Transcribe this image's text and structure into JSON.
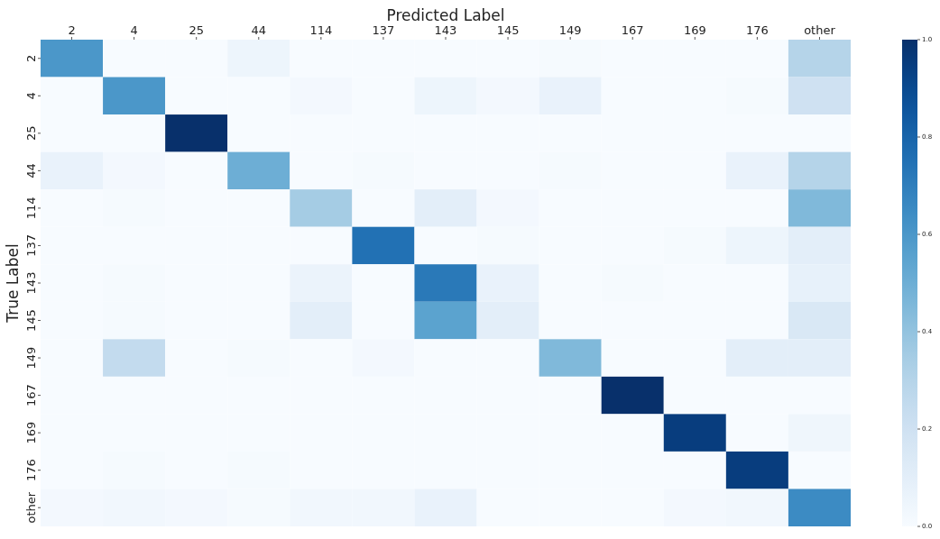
{
  "chart_data": {
    "type": "heatmap",
    "xlabel": "Predicted Label",
    "ylabel": "True Label",
    "categories": [
      "2",
      "4",
      "25",
      "44",
      "114",
      "137",
      "143",
      "145",
      "149",
      "167",
      "169",
      "176",
      "other"
    ],
    "y_categories": [
      "2",
      "4",
      "25",
      "44",
      "114",
      "137",
      "143",
      "145",
      "149",
      "167",
      "169",
      "176",
      "other"
    ],
    "cells": [
      [
        0.6,
        0,
        0,
        0.05,
        0,
        0,
        0,
        0,
        0.01,
        0,
        0,
        0,
        0.3
      ],
      [
        0,
        0.6,
        0,
        0,
        0.02,
        0,
        0.05,
        0.02,
        0.07,
        0,
        0,
        0.01,
        0.2
      ],
      [
        0,
        0,
        1.0,
        0,
        0,
        0,
        0,
        0,
        0,
        0,
        0,
        0,
        0
      ],
      [
        0.07,
        0.02,
        0,
        0.5,
        0,
        0.01,
        0,
        0,
        0.01,
        0,
        0,
        0.07,
        0.3
      ],
      [
        0,
        0.01,
        0,
        0,
        0.35,
        0,
        0.1,
        0.02,
        0,
        0,
        0,
        0,
        0.45
      ],
      [
        0,
        0,
        0,
        0,
        0,
        0.75,
        0,
        0.01,
        0,
        0,
        0.01,
        0.05,
        0.1
      ],
      [
        0,
        0.01,
        0,
        0,
        0.06,
        0,
        0.72,
        0.07,
        0,
        0.01,
        0,
        0,
        0.08
      ],
      [
        0,
        0.01,
        0,
        0,
        0.1,
        0,
        0.55,
        0.1,
        0,
        0,
        0,
        0,
        0.15
      ],
      [
        0,
        0.25,
        0,
        0.01,
        0,
        0.02,
        0,
        0,
        0.45,
        0,
        0,
        0.1,
        0.1
      ],
      [
        0,
        0,
        0,
        0,
        0,
        0,
        0,
        0,
        0,
        1.0,
        0,
        0,
        0
      ],
      [
        0,
        0,
        0,
        0,
        0,
        0,
        0,
        0,
        0,
        0,
        0.95,
        0,
        0.04
      ],
      [
        0,
        0.01,
        0,
        0.01,
        0,
        0,
        0,
        0,
        0,
        0,
        0,
        0.95,
        0
      ],
      [
        0.02,
        0.03,
        0.02,
        0.01,
        0.03,
        0.03,
        0.07,
        0,
        0,
        0,
        0.02,
        0.03,
        0.65
      ]
    ],
    "clim": [
      0,
      1
    ],
    "cticks": [
      {
        "value": 0,
        "label": "0.0"
      },
      {
        "value": 0.2,
        "label": "0.2"
      },
      {
        "value": 0.4,
        "label": "0.4"
      },
      {
        "value": 0.6,
        "label": "0.6"
      },
      {
        "value": 0.8,
        "label": "0.8"
      },
      {
        "value": 1,
        "label": "1.0"
      }
    ]
  }
}
